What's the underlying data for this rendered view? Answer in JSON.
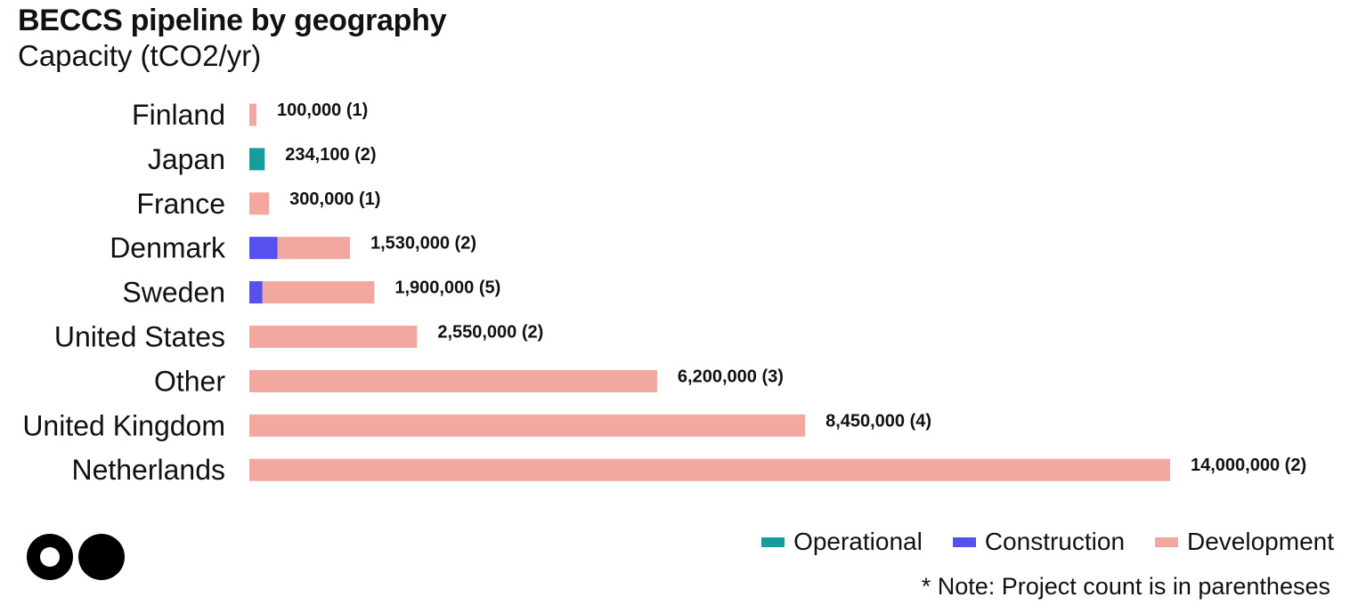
{
  "chart_data": {
    "type": "bar",
    "orientation": "horizontal",
    "stacked": true,
    "title": "BECCS pipeline by geography",
    "subtitle": "Capacity (tCO2/yr)",
    "categories": [
      "Finland",
      "Japan",
      "France",
      "Denmark",
      "Sweden",
      "United States",
      "Other",
      "United Kingdom",
      "Netherlands"
    ],
    "series": [
      {
        "name": "Operational",
        "color": "#169C9C",
        "values": [
          0,
          234100,
          0,
          0,
          0,
          0,
          0,
          0,
          0
        ]
      },
      {
        "name": "Construction",
        "color": "#5650EE",
        "values": [
          0,
          0,
          0,
          430000,
          200000,
          0,
          0,
          0,
          0
        ]
      },
      {
        "name": "Development",
        "color": "#F2A89F",
        "values": [
          100000,
          0,
          300000,
          1100000,
          1700000,
          2550000,
          6200000,
          8450000,
          14000000
        ]
      }
    ],
    "data_labels": [
      "100,000 (1)",
      "234,100 (2)",
      "300,000 (1)",
      "1,530,000 (2)",
      "1,900,000 (5)",
      "2,550,000 (2)",
      "6,200,000 (3)",
      "8,450,000 (4)",
      "14,000,000 (2)"
    ],
    "xlim": [
      0,
      14000000
    ],
    "grid": false,
    "legend_position": "bottom-right",
    "note": "*  Note: Project count is in parentheses"
  }
}
